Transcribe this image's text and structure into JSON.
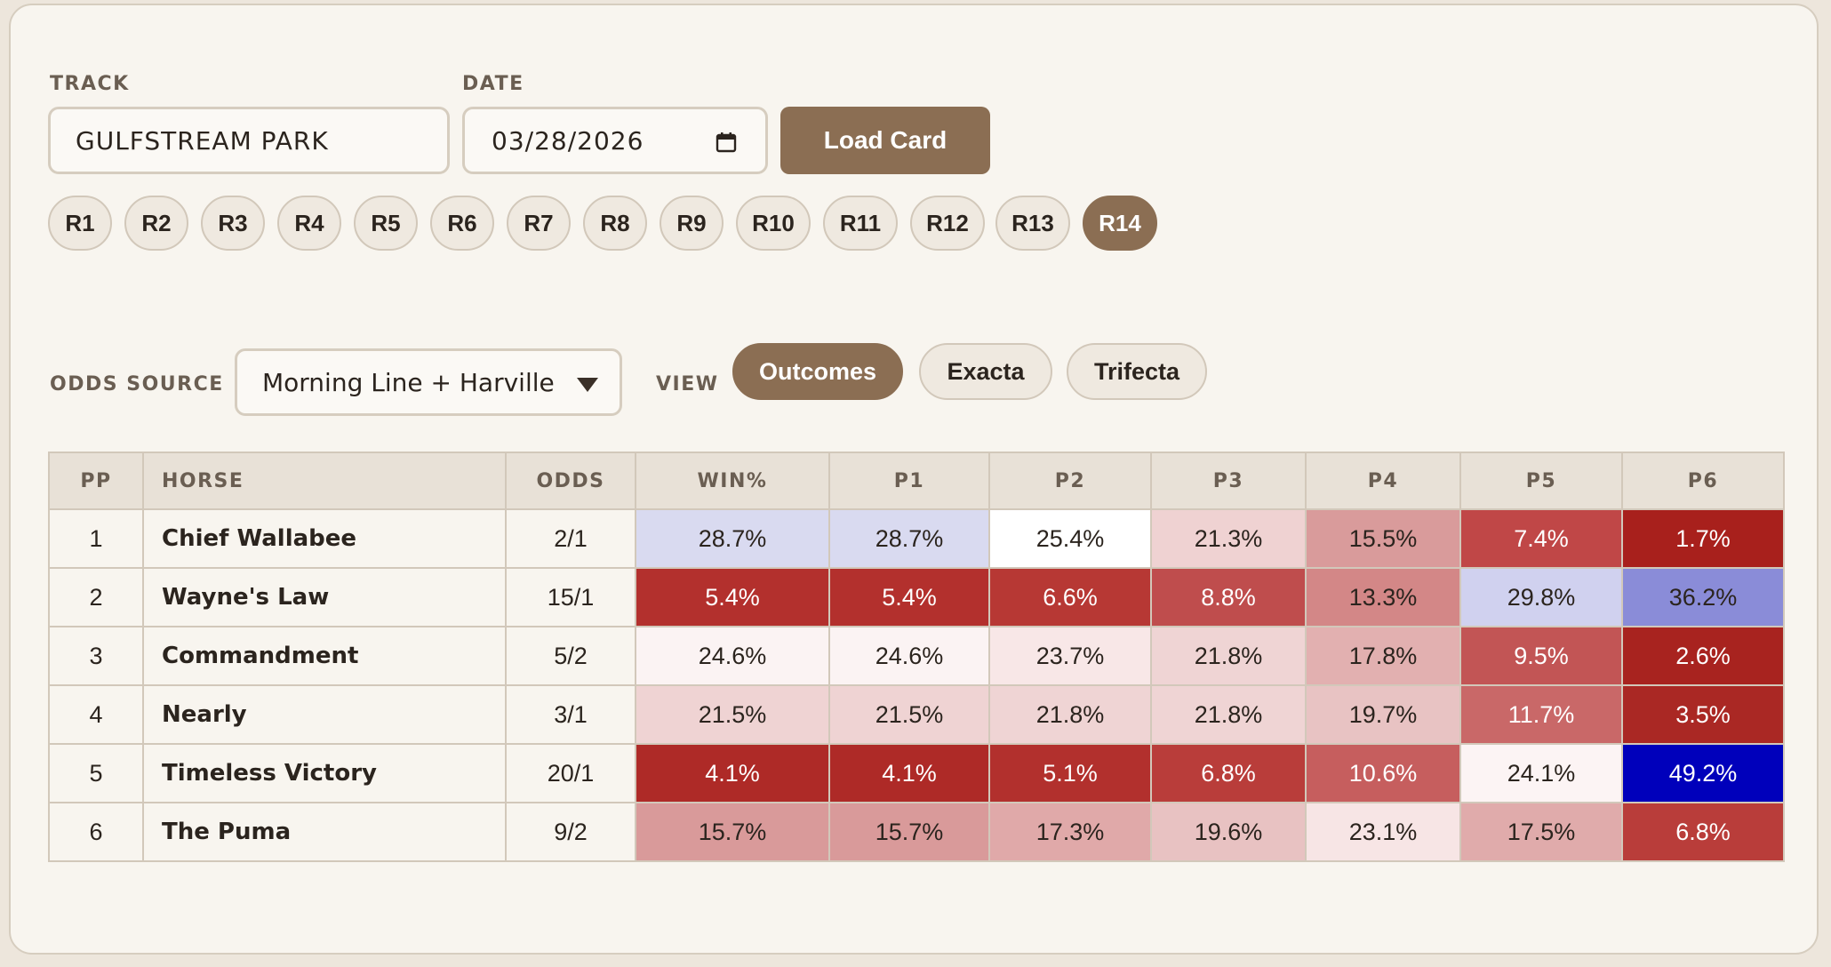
{
  "track": {
    "label": "TRACK",
    "value": "GULFSTREAM PARK"
  },
  "date": {
    "label": "DATE",
    "value": "03/28/2026"
  },
  "load_button": "Load Card",
  "races": [
    "R1",
    "R2",
    "R3",
    "R4",
    "R5",
    "R6",
    "R7",
    "R8",
    "R9",
    "R10",
    "R11",
    "R12",
    "R13",
    "R14"
  ],
  "active_race": "R14",
  "odds_source": {
    "label": "ODDS SOURCE",
    "value": "Morning Line + Harville"
  },
  "view": {
    "label": "VIEW",
    "options": [
      "Outcomes",
      "Exacta",
      "Trifecta"
    ],
    "active": "Outcomes"
  },
  "table": {
    "headers": [
      "PP",
      "HORSE",
      "ODDS",
      "WIN%",
      "P1",
      "P2",
      "P3",
      "P4",
      "P5",
      "P6"
    ],
    "rows": [
      {
        "pp": "1",
        "horse": "Chief Wallabee",
        "odds": "2/1",
        "cells": [
          "28.7%",
          "28.7%",
          "25.4%",
          "21.3%",
          "15.5%",
          "7.4%",
          "1.7%"
        ],
        "colors": [
          "#d9daf0",
          "#d9daf0",
          "#ffffff",
          "#efd2d2",
          "#d99b9b",
          "#c04747",
          "#a8201c"
        ],
        "text_colors": [
          "#2b241e",
          "#2b241e",
          "#2b241e",
          "#2b241e",
          "#2b241e",
          "#ffffff",
          "#ffffff"
        ]
      },
      {
        "pp": "2",
        "horse": "Wayne's Law",
        "odds": "15/1",
        "cells": [
          "5.4%",
          "5.4%",
          "6.6%",
          "8.8%",
          "13.3%",
          "29.8%",
          "36.2%"
        ],
        "colors": [
          "#b3302d",
          "#b3302d",
          "#b73834",
          "#bf4d4d",
          "#d38787",
          "#d0d1ef",
          "#8a8cd8"
        ],
        "text_colors": [
          "#ffffff",
          "#ffffff",
          "#ffffff",
          "#ffffff",
          "#2b241e",
          "#2b241e",
          "#2b241e"
        ]
      },
      {
        "pp": "3",
        "horse": "Commandment",
        "odds": "5/2",
        "cells": [
          "24.6%",
          "24.6%",
          "23.7%",
          "21.8%",
          "17.8%",
          "9.5%",
          "2.6%"
        ],
        "colors": [
          "#fbf3f3",
          "#fbf3f3",
          "#f8e7e7",
          "#efd4d4",
          "#e2b0b0",
          "#c25555",
          "#a8231f"
        ],
        "text_colors": [
          "#2b241e",
          "#2b241e",
          "#2b241e",
          "#2b241e",
          "#2b241e",
          "#ffffff",
          "#ffffff"
        ]
      },
      {
        "pp": "4",
        "horse": "Nearly",
        "odds": "3/1",
        "cells": [
          "21.5%",
          "21.5%",
          "21.8%",
          "21.8%",
          "19.7%",
          "11.7%",
          "3.5%"
        ],
        "colors": [
          "#efd3d3",
          "#efd3d3",
          "#efd4d4",
          "#efd4d4",
          "#e8c3c3",
          "#c96868",
          "#aa2824"
        ],
        "text_colors": [
          "#2b241e",
          "#2b241e",
          "#2b241e",
          "#2b241e",
          "#2b241e",
          "#ffffff",
          "#ffffff"
        ]
      },
      {
        "pp": "5",
        "horse": "Timeless Victory",
        "odds": "20/1",
        "cells": [
          "4.1%",
          "4.1%",
          "5.1%",
          "6.8%",
          "10.6%",
          "24.1%",
          "49.2%"
        ],
        "colors": [
          "#ae2a27",
          "#ae2a27",
          "#b2302d",
          "#b93d3a",
          "#c65e5e",
          "#fcf4f4",
          "#0000bb"
        ],
        "text_colors": [
          "#ffffff",
          "#ffffff",
          "#ffffff",
          "#ffffff",
          "#ffffff",
          "#2b241e",
          "#ffffff"
        ]
      },
      {
        "pp": "6",
        "horse": "The Puma",
        "odds": "9/2",
        "cells": [
          "15.7%",
          "15.7%",
          "17.3%",
          "19.6%",
          "23.1%",
          "17.5%",
          "6.8%"
        ],
        "colors": [
          "#d99a9a",
          "#d99a9a",
          "#e0a9a9",
          "#e8c2c2",
          "#f7e5e5",
          "#e0abab",
          "#b93d3a"
        ],
        "text_colors": [
          "#2b241e",
          "#2b241e",
          "#2b241e",
          "#2b241e",
          "#2b241e",
          "#2b241e",
          "#ffffff"
        ]
      }
    ]
  }
}
